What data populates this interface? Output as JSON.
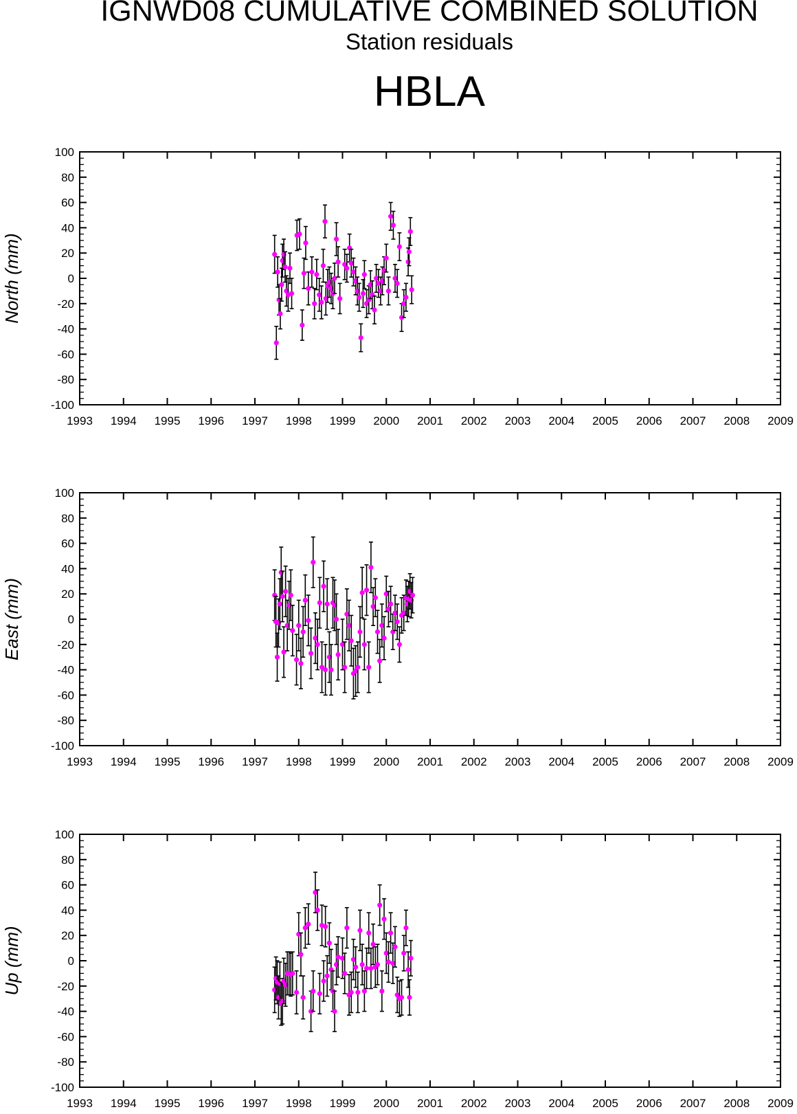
{
  "header": {
    "title": "IGNWD08 CUMULATIVE COMBINED SOLUTION",
    "subtitle": "Station residuals",
    "station": "HBLA"
  },
  "colors": {
    "point": "#ff00ff",
    "errorbar": "#000000",
    "axis": "#000000"
  },
  "chart_data": [
    {
      "type": "scatter",
      "ylabel": "North (mm)",
      "xlim": [
        1993,
        2009
      ],
      "ylim": [
        -100,
        100
      ],
      "x_ticks": [
        1993,
        1994,
        1995,
        1996,
        1997,
        1998,
        1999,
        2000,
        2001,
        2002,
        2003,
        2004,
        2005,
        2006,
        2007,
        2008,
        2009
      ],
      "y_ticks": [
        -100,
        -80,
        -60,
        -40,
        -20,
        0,
        20,
        40,
        60,
        80,
        100
      ],
      "error_bars": true,
      "series": [
        {
          "x": [
            1997.45,
            1997.49,
            1997.52,
            1997.55,
            1997.58,
            1997.61,
            1997.63,
            1997.66,
            1997.69,
            1997.72,
            1997.76,
            1997.8,
            1997.84,
            1997.96,
            1998.02,
            1998.08,
            1998.12,
            1998.16,
            1998.22,
            1998.3,
            1998.36,
            1998.41,
            1998.47,
            1998.52,
            1998.56,
            1998.6,
            1998.62,
            1998.66,
            1998.7,
            1998.74,
            1998.78,
            1998.82,
            1998.86,
            1998.9,
            1998.94,
            1999.05,
            1999.1,
            1999.16,
            1999.2,
            1999.25,
            1999.3,
            1999.34,
            1999.38,
            1999.42,
            1999.47,
            1999.5,
            1999.55,
            1999.6,
            1999.64,
            1999.68,
            1999.73,
            1999.77,
            1999.82,
            1999.87,
            1999.91,
            1999.95,
            2000.0,
            2000.05,
            2000.1,
            2000.16,
            2000.2,
            2000.25,
            2000.3,
            2000.35,
            2000.4,
            2000.45,
            2000.5,
            2000.52,
            2000.55,
            2000.58
          ],
          "y": [
            19,
            -51,
            5,
            -17,
            -28,
            -5,
            14,
            19,
            9,
            -10,
            -13,
            8,
            -12,
            34,
            35,
            -37,
            4,
            28,
            -8,
            5,
            -20,
            3,
            -13,
            -19,
            10,
            45,
            -16,
            -6,
            -3,
            -8,
            -12,
            0,
            31,
            13,
            -16,
            11,
            8,
            24,
            12,
            5,
            -2,
            -10,
            -15,
            -47,
            -12,
            3,
            -20,
            -17,
            -5,
            -13,
            -25,
            0,
            -4,
            -10,
            -2,
            6,
            16,
            -10,
            49,
            42,
            0,
            -4,
            25,
            -31,
            -20,
            -15,
            13,
            21,
            37,
            -9
          ],
          "yerr": [
            15,
            13,
            12,
            12,
            12,
            13,
            13,
            12,
            12,
            12,
            13,
            12,
            12,
            12,
            12,
            12,
            12,
            13,
            13,
            12,
            12,
            12,
            13,
            13,
            13,
            13,
            13,
            13,
            12,
            12,
            12,
            12,
            13,
            12,
            12,
            12,
            11,
            11,
            11,
            11,
            11,
            11,
            11,
            11,
            11,
            11,
            11,
            11,
            11,
            11,
            11,
            11,
            11,
            11,
            11,
            11,
            11,
            11,
            11,
            11,
            11,
            11,
            11,
            11,
            11,
            11,
            11,
            11,
            11,
            11
          ]
        }
      ]
    },
    {
      "type": "scatter",
      "ylabel": "East (mm)",
      "xlim": [
        1993,
        2009
      ],
      "ylim": [
        -100,
        100
      ],
      "x_ticks": [
        1993,
        1994,
        1995,
        1996,
        1997,
        1998,
        1999,
        2000,
        2001,
        2002,
        2003,
        2004,
        2005,
        2006,
        2007,
        2008,
        2009
      ],
      "y_ticks": [
        -100,
        -80,
        -60,
        -40,
        -20,
        0,
        20,
        40,
        60,
        80,
        100
      ],
      "error_bars": true,
      "series": [
        {
          "x": [
            1997.45,
            1997.48,
            1997.51,
            1997.54,
            1997.57,
            1997.6,
            1997.63,
            1997.66,
            1997.7,
            1997.74,
            1997.78,
            1997.82,
            1997.86,
            1997.95,
            1998.0,
            1998.05,
            1998.1,
            1998.15,
            1998.22,
            1998.28,
            1998.33,
            1998.38,
            1998.43,
            1998.48,
            1998.53,
            1998.57,
            1998.61,
            1998.65,
            1998.7,
            1998.74,
            1998.78,
            1998.82,
            1998.86,
            1998.9,
            1999.0,
            1999.05,
            1999.1,
            1999.15,
            1999.2,
            1999.25,
            1999.3,
            1999.35,
            1999.4,
            1999.45,
            1999.5,
            1999.55,
            1999.6,
            1999.65,
            1999.7,
            1999.75,
            1999.8,
            1999.85,
            1999.9,
            1999.95,
            2000.0,
            2000.05,
            2000.1,
            2000.15,
            2000.2,
            2000.25,
            2000.3,
            2000.35,
            2000.4,
            2000.45,
            2000.48,
            2000.51,
            2000.54,
            2000.57,
            2000.6
          ],
          "y": [
            19,
            -2,
            -30,
            -3,
            12,
            37,
            18,
            -26,
            22,
            -5,
            11,
            19,
            -9,
            -32,
            -5,
            -35,
            -10,
            15,
            -1,
            -27,
            45,
            -15,
            -20,
            13,
            -38,
            26,
            -40,
            12,
            -30,
            -40,
            13,
            11,
            0,
            -28,
            -20,
            -38,
            4,
            -5,
            -17,
            -43,
            -41,
            -38,
            -10,
            21,
            -20,
            23,
            -38,
            41,
            10,
            17,
            -10,
            -33,
            -5,
            -15,
            20,
            8,
            12,
            -10,
            5,
            -2,
            -20,
            3,
            5,
            17,
            12,
            16,
            22,
            15,
            19
          ],
          "yerr": [
            20,
            20,
            19,
            19,
            20,
            20,
            20,
            20,
            20,
            20,
            19,
            20,
            20,
            20,
            20,
            20,
            20,
            20,
            20,
            20,
            20,
            20,
            20,
            20,
            20,
            20,
            20,
            20,
            20,
            20,
            20,
            20,
            20,
            20,
            20,
            20,
            20,
            20,
            20,
            20,
            20,
            20,
            20,
            20,
            20,
            20,
            20,
            20,
            15,
            15,
            17,
            17,
            17,
            17,
            14,
            14,
            14,
            14,
            14,
            14,
            14,
            14,
            14,
            14,
            14,
            14,
            14,
            14,
            14
          ]
        }
      ]
    },
    {
      "type": "scatter",
      "ylabel": "Up (mm)",
      "xlim": [
        1993,
        2009
      ],
      "ylim": [
        -100,
        100
      ],
      "x_ticks": [
        1993,
        1994,
        1995,
        1996,
        1997,
        1998,
        1999,
        2000,
        2001,
        2002,
        2003,
        2004,
        2005,
        2006,
        2007,
        2008,
        2009
      ],
      "y_ticks": [
        -100,
        -80,
        -60,
        -40,
        -20,
        0,
        20,
        40,
        60,
        80,
        100
      ],
      "error_bars": true,
      "series": [
        {
          "x": [
            1997.45,
            1997.48,
            1997.51,
            1997.54,
            1997.57,
            1997.6,
            1997.63,
            1997.66,
            1997.7,
            1997.74,
            1997.78,
            1997.82,
            1997.86,
            1997.95,
            1998.0,
            1998.05,
            1998.1,
            1998.15,
            1998.22,
            1998.28,
            1998.33,
            1998.38,
            1998.43,
            1998.48,
            1998.53,
            1998.57,
            1998.61,
            1998.65,
            1998.7,
            1998.74,
            1998.78,
            1998.82,
            1998.86,
            1998.9,
            1999.0,
            1999.05,
            1999.1,
            1999.15,
            1999.2,
            1999.25,
            1999.3,
            1999.35,
            1999.4,
            1999.45,
            1999.5,
            1999.55,
            1999.6,
            1999.65,
            1999.7,
            1999.75,
            1999.8,
            1999.85,
            1999.9,
            1999.95,
            2000.0,
            2000.05,
            2000.1,
            2000.15,
            2000.2,
            2000.25,
            2000.3,
            2000.35,
            2000.4,
            2000.45,
            2000.5,
            2000.53,
            2000.56
          ],
          "y": [
            -23,
            -14,
            -17,
            -29,
            -18,
            -34,
            -32,
            -16,
            -19,
            -10,
            -10,
            -11,
            -10,
            -25,
            21,
            5,
            -29,
            26,
            29,
            -40,
            -24,
            54,
            40,
            -26,
            28,
            -16,
            27,
            -12,
            14,
            -7,
            -24,
            -40,
            -3,
            3,
            2,
            -10,
            26,
            -27,
            -25,
            1,
            -5,
            -25,
            24,
            -3,
            -24,
            -6,
            22,
            -6,
            13,
            -5,
            -3,
            44,
            -24,
            33,
            6,
            -1,
            22,
            -2,
            11,
            -27,
            -30,
            -29,
            6,
            26,
            -7,
            -29,
            2
          ],
          "yerr": [
            18,
            17,
            17,
            17,
            17,
            17,
            18,
            18,
            17,
            17,
            17,
            17,
            17,
            17,
            17,
            17,
            17,
            16,
            16,
            16,
            16,
            16,
            16,
            16,
            16,
            16,
            16,
            16,
            16,
            16,
            16,
            16,
            16,
            16,
            16,
            16,
            16,
            16,
            16,
            16,
            16,
            16,
            16,
            16,
            16,
            16,
            16,
            16,
            16,
            16,
            16,
            16,
            16,
            16,
            16,
            16,
            16,
            16,
            16,
            14,
            14,
            14,
            14,
            14,
            14,
            14,
            14
          ]
        }
      ]
    }
  ]
}
